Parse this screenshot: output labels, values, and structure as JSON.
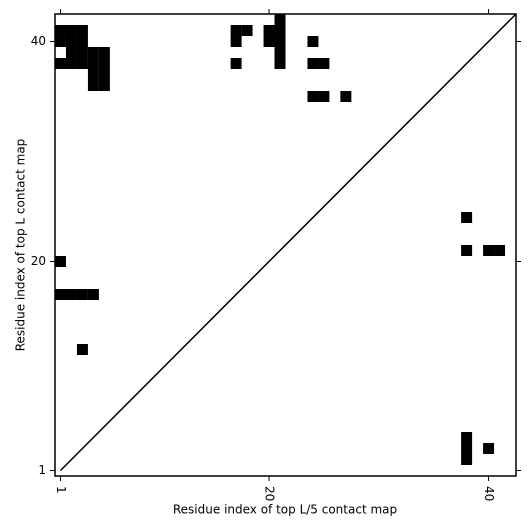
{
  "chart_data": {
    "type": "scatter",
    "marker": "cell",
    "color": "#000000",
    "xlabel": "Residue index of top L/5 contact map",
    "ylabel": "Residue index of top L contact map",
    "xlim": [
      0.5,
      42.5
    ],
    "ylim": [
      0.5,
      42.5
    ],
    "xticks": [
      1,
      20,
      40
    ],
    "yticks": [
      1,
      20,
      40
    ],
    "diagonal": true,
    "x": [
      1,
      2,
      3,
      1,
      2,
      3,
      2,
      3,
      4,
      5,
      1,
      2,
      3,
      4,
      5,
      4,
      5,
      4,
      5,
      17,
      18,
      17,
      17,
      20,
      20,
      21,
      21,
      21,
      21,
      21,
      24,
      24,
      25,
      24,
      25,
      27,
      38,
      38,
      40,
      41,
      38,
      38,
      38,
      40,
      1,
      1,
      2,
      3,
      4,
      3
    ],
    "y": [
      41,
      41,
      41,
      40,
      40,
      40,
      39,
      39,
      39,
      39,
      38,
      38,
      38,
      38,
      38,
      37,
      37,
      36,
      36,
      41,
      41,
      40,
      38,
      41,
      40,
      42,
      41,
      40,
      39,
      38,
      40,
      38,
      38,
      35,
      35,
      35,
      24,
      21,
      21,
      21,
      4,
      3,
      2,
      3,
      20,
      17,
      17,
      17,
      17,
      12
    ]
  }
}
